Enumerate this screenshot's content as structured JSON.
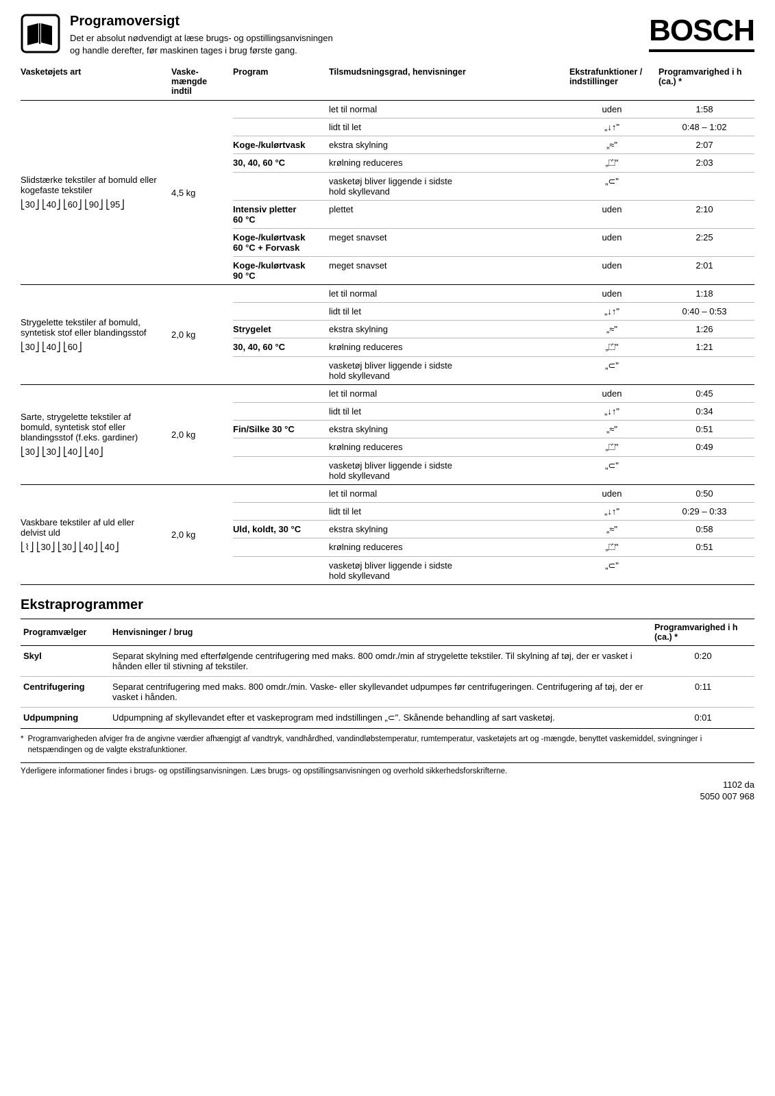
{
  "header": {
    "title": "Programoversigt",
    "subtitle_l1": "Det er absolut nødvendigt at læse brugs- og opstillingsanvisningen",
    "subtitle_l2": "og handle derefter, før maskinen tages i brug første gang.",
    "brand": "BOSCH"
  },
  "columns": {
    "art": "Vasketøjets art",
    "mgd_l1": "Vaske-",
    "mgd_l2": "mængde indtil",
    "prog": "Program",
    "tils": "Tilsmudsningsgrad, henvisninger",
    "eks_l1": "Ekstrafunktioner /",
    "eks_l2": "indstillinger",
    "var_l1": "Programvarighed i h",
    "var_l2": "(ca.) *"
  },
  "sections": [
    {
      "art_l1": "Slidstærke tekstiler af bomuld eller",
      "art_l2": "kogefaste tekstiler",
      "care": "⎣30⎦ ⎣40⎦ ⎣60⎦ ⎣90⎦ ⎣95⎦",
      "mgd": "4,5 kg",
      "rows": [
        {
          "prog": "",
          "tils": "let til normal",
          "eks": "uden",
          "var": "1:58"
        },
        {
          "prog": "",
          "tils": "lidt til let",
          "eks": "„↓↑\"",
          "var": "0:48 – 1:02"
        },
        {
          "prog": "Koge-/kulørtvask",
          "progBold": true,
          "tils": "ekstra skylning",
          "eks": "„≈\"",
          "var": "2:07"
        },
        {
          "prog": "30, 40, 60 °C",
          "progBold": true,
          "tils": "krølning reduceres",
          "eks": "„⏍\"",
          "var": "2:03"
        },
        {
          "prog": "",
          "tils": "vasketøj bliver liggende i sidste\nhold skyllevand",
          "eks": "„⊂\"",
          "var": ""
        },
        {
          "prog": "Intensiv pletter\n60 °C",
          "progBold": true,
          "tils": "plettet",
          "eks": "uden",
          "var": "2:10"
        },
        {
          "prog": "Koge-/kulørtvask\n60 °C + Forvask",
          "progBold": true,
          "tils": "meget snavset",
          "eks": "uden",
          "var": "2:25"
        },
        {
          "prog": "Koge-/kulørtvask\n90 °C",
          "progBold": true,
          "tils": "meget snavset",
          "eks": "uden",
          "var": "2:01"
        }
      ]
    },
    {
      "art_l1": "Strygelette tekstiler af bomuld,",
      "art_l2": "syntetisk stof eller blandingsstof",
      "care": "⎣30⎦ ⎣40⎦ ⎣60⎦",
      "mgd": "2,0 kg",
      "rows": [
        {
          "prog": "",
          "tils": "let til normal",
          "eks": "uden",
          "var": "1:18"
        },
        {
          "prog": "",
          "tils": "lidt til let",
          "eks": "„↓↑\"",
          "var": "0:40 – 0:53"
        },
        {
          "prog": "Strygelet",
          "progBold": true,
          "tils": "ekstra skylning",
          "eks": "„≈\"",
          "var": "1:26"
        },
        {
          "prog": "30, 40, 60 °C",
          "progBold": true,
          "tils": "krølning reduceres",
          "eks": "„⏍\"",
          "var": "1:21"
        },
        {
          "prog": "",
          "tils": "vasketøj bliver liggende i sidste\nhold skyllevand",
          "eks": "„⊂\"",
          "var": ""
        }
      ]
    },
    {
      "art_l1": "Sarte, strygelette tekstiler af",
      "art_l2": "bomuld, syntetisk stof eller",
      "art_l3": "blandingsstof (f.eks. gardiner)",
      "care": "⎣30⎦ ⎣30⎦ ⎣40⎦ ⎣40⎦",
      "mgd": "2,0 kg",
      "rows": [
        {
          "prog": "",
          "tils": "let til normal",
          "eks": "uden",
          "var": "0:45"
        },
        {
          "prog": "",
          "tils": "lidt til let",
          "eks": "„↓↑\"",
          "var": "0:34"
        },
        {
          "prog": "Fin/Silke 30 °C",
          "progBold": true,
          "tils": "ekstra skylning",
          "eks": "„≈\"",
          "var": "0:51"
        },
        {
          "prog": "",
          "tils": "krølning reduceres",
          "eks": "„⏍\"",
          "var": "0:49"
        },
        {
          "prog": "",
          "tils": "vasketøj bliver liggende i sidste\nhold skyllevand",
          "eks": "„⊂\"",
          "var": ""
        }
      ]
    },
    {
      "art_l1": "Vaskbare tekstiler af uld eller",
      "art_l2": "delvist uld",
      "care": "⎣⌇⎦ ⎣30⎦ ⎣30⎦ ⎣40⎦ ⎣40⎦",
      "mgd": "2,0 kg",
      "rows": [
        {
          "prog": "",
          "tils": "let til normal",
          "eks": "uden",
          "var": "0:50"
        },
        {
          "prog": "",
          "tils": "lidt til let",
          "eks": "„↓↑\"",
          "var": "0:29 – 0:33"
        },
        {
          "prog": "Uld, koldt, 30 °C",
          "progBold": true,
          "tils": "ekstra skylning",
          "eks": "„≈\"",
          "var": "0:58"
        },
        {
          "prog": "",
          "tils": "krølning reduceres",
          "eks": "„⏍\"",
          "var": "0:51"
        },
        {
          "prog": "",
          "tils": "vasketøj bliver liggende i sidste\nhold skyllevand",
          "eks": "„⊂\"",
          "var": ""
        }
      ]
    }
  ],
  "extra_title": "Ekstraprogrammer",
  "extra_cols": {
    "pv": "Programvælger",
    "henv": "Henvisninger / brug",
    "var_l1": "Programvarighed i h",
    "var_l2": "(ca.) *"
  },
  "extra_rows": [
    {
      "pv": "Skyl",
      "henv": "Separat skylning med efterfølgende centrifugering med maks. 800 omdr./min af strygelette tekstiler. Til skylning af tøj, der er vasket i hånden eller til stivning af tekstiler.",
      "var": "0:20"
    },
    {
      "pv": "Centrifugering",
      "henv": "Separat centrifugering med maks. 800 omdr./min. Vaske- eller skyllevandet udpumpes før centrifugeringen. Centrifugering af tøj, der er vasket i hånden.",
      "var": "0:11"
    },
    {
      "pv": "Udpumpning",
      "henv": "Udpumpning af skyllevandet efter et vaskeprogram med indstillingen „⊂\". Skånende behandling af sart vasketøj.",
      "var": "0:01"
    }
  ],
  "footnote_star": "*",
  "footnote": "Programvarigheden afviger fra de angivne værdier afhængigt af vandtryk, vandhårdhed, vandindløbstemperatur, rumtemperatur, vasketøjets art og -mængde, benyttet vaskemiddel, svingninger i netspændingen og de valgte ekstrafunktioner.",
  "bottom": "Yderligere informationer findes i brugs- og opstillingsanvisningen. Læs brugs- og opstillingsanvisningen og overhold sikkerhedsforskrifterne.",
  "docnum_l1": "1102 da",
  "docnum_l2": "5050 007 968"
}
